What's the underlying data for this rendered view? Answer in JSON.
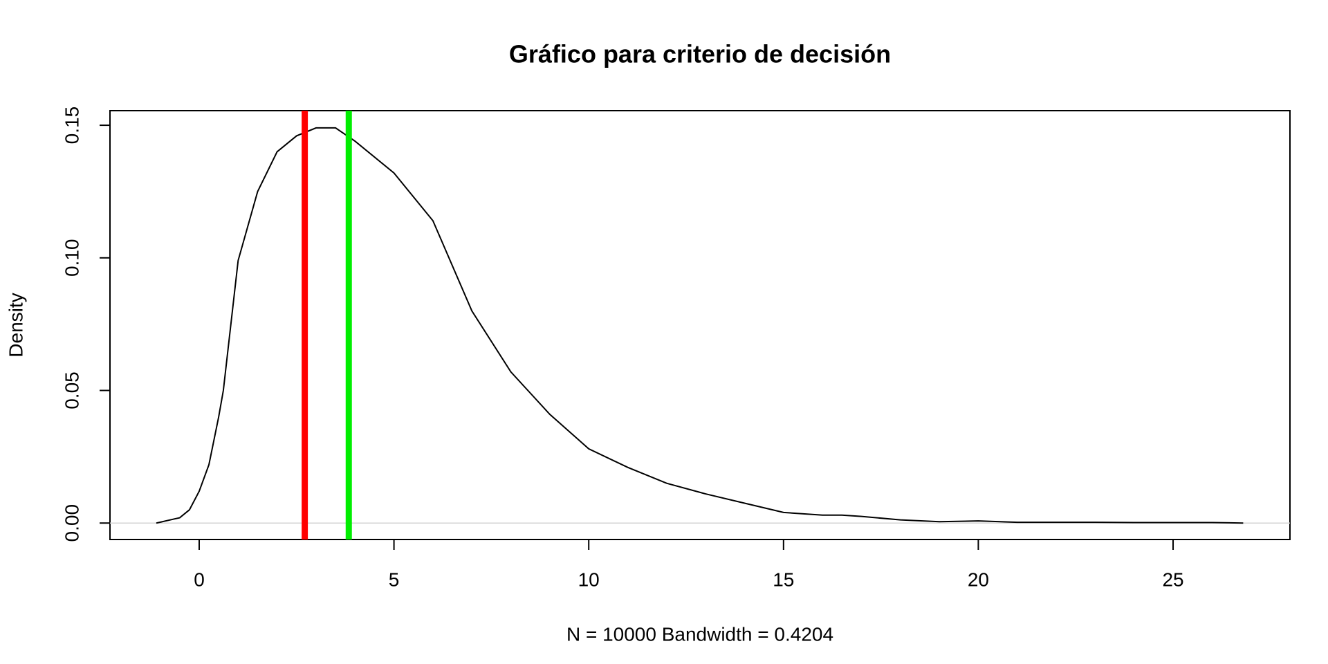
{
  "chart_data": {
    "type": "density",
    "title": "Gráfico para criterio de decisión",
    "xlabel": "N = 10000   Bandwidth = 0.4204",
    "ylabel": "Density",
    "x": [
      -1.1,
      -0.5,
      -0.25,
      0,
      0.25,
      0.5,
      0.62,
      1,
      1.5,
      2,
      2.5,
      3,
      3.5,
      4,
      5,
      6,
      7,
      8,
      9,
      10,
      11,
      12,
      13,
      14,
      15,
      16,
      16.5,
      17,
      18,
      19,
      20,
      21,
      22,
      23,
      24,
      25,
      26,
      26.8
    ],
    "series": [
      {
        "color": "#000000",
        "values": [
          0,
          0.002,
          0.005,
          0.012,
          0.022,
          0.04,
          0.05,
          0.099,
          0.125,
          0.14,
          0.146,
          0.149,
          0.149,
          0.144,
          0.132,
          0.114,
          0.08,
          0.057,
          0.041,
          0.028,
          0.021,
          0.015,
          0.011,
          0.0075,
          0.004,
          0.003,
          0.003,
          0.0025,
          0.0012,
          0.0005,
          0.0008,
          0.0003,
          0.0003,
          0.0003,
          0.0002,
          0.0002,
          0.0002,
          0
        ]
      }
    ],
    "vlines": [
      {
        "x": 2.71,
        "color": "#ff0000"
      },
      {
        "x": 3.84,
        "color": "#00ee00"
      }
    ],
    "zero_line": true,
    "xlim": [
      -2.29,
      28.0
    ],
    "ylim": [
      -0.0062,
      0.1555
    ],
    "xticks": [
      0,
      5,
      10,
      15,
      20,
      25
    ],
    "yticks": [
      {
        "value": 0,
        "label": "0.00"
      },
      {
        "value": 0.05,
        "label": "0.05"
      },
      {
        "value": 0.1,
        "label": "0.10"
      },
      {
        "value": 0.15,
        "label": "0.15"
      }
    ]
  }
}
